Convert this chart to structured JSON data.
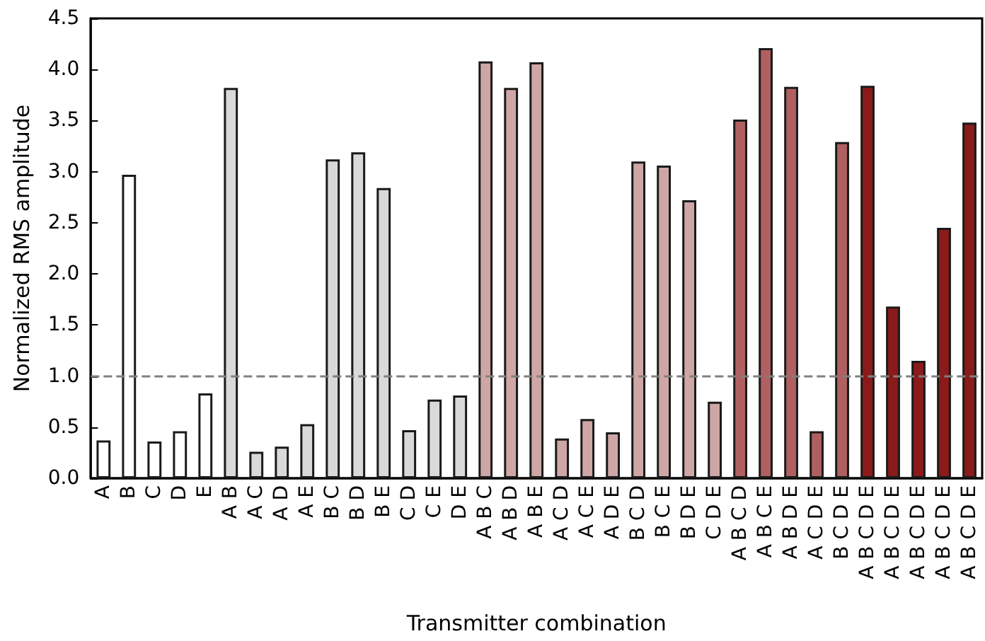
{
  "chart_data": {
    "type": "bar",
    "xlabel": "Transmitter combination",
    "ylabel": "Normalized RMS amplitude",
    "categories": [
      "A",
      "B",
      "C",
      "D",
      "E",
      "A B",
      "A C",
      "A D",
      "A E",
      "B C",
      "B D",
      "B E",
      "C D",
      "C E",
      "D E",
      "A B C",
      "A B D",
      "A B E",
      "A C D",
      "A C E",
      "A D E",
      "B C D",
      "B C E",
      "B D E",
      "C D E",
      "A B C D",
      "A B C E",
      "A B D E",
      "A C D E",
      "B C D E",
      "A B C D E",
      "A B C D E",
      "A B C D E",
      "A B C D E",
      "A B C D E"
    ],
    "values": [
      0.37,
      2.97,
      0.36,
      0.46,
      0.83,
      3.82,
      0.26,
      0.31,
      0.53,
      3.12,
      3.19,
      2.84,
      0.47,
      0.77,
      0.81,
      4.08,
      3.82,
      4.07,
      0.39,
      0.58,
      0.45,
      3.1,
      3.06,
      2.72,
      0.75,
      3.51,
      4.21,
      3.83,
      0.46,
      3.29,
      3.84,
      1.68,
      1.15,
      2.45,
      3.48
    ],
    "colors": [
      "#ffffff",
      "#ffffff",
      "#ffffff",
      "#ffffff",
      "#ffffff",
      "#d9d9d9",
      "#d9d9d9",
      "#d9d9d9",
      "#d9d9d9",
      "#d9d9d9",
      "#d9d9d9",
      "#d9d9d9",
      "#d9d9d9",
      "#d9d9d9",
      "#d9d9d9",
      "#cfa6a6",
      "#cfa6a6",
      "#cfa6a6",
      "#cfa6a6",
      "#cfa6a6",
      "#cfa6a6",
      "#cfa6a6",
      "#cfa6a6",
      "#cfa6a6",
      "#cfa6a6",
      "#b06060",
      "#b06060",
      "#b06060",
      "#b06060",
      "#b06060",
      "#8b1a1a",
      "#8b1a1a",
      "#8b1a1a",
      "#8b1a1a",
      "#8b1a1a"
    ],
    "ylim": [
      0,
      4.5
    ],
    "yticks": [
      {
        "value": 0,
        "label": "0.0"
      },
      0.5,
      {
        "value": 1,
        "label": "1.0"
      },
      1.5,
      {
        "value": 2,
        "label": "2.0"
      },
      2.5,
      {
        "value": 3,
        "label": "3.0"
      },
      3.5,
      {
        "value": 4,
        "label": "4.0"
      },
      4.5
    ],
    "grid": false,
    "ref_lines": [
      {
        "axis": "y",
        "value": 1,
        "color": "#808080",
        "line_style": "dashed"
      }
    ]
  }
}
